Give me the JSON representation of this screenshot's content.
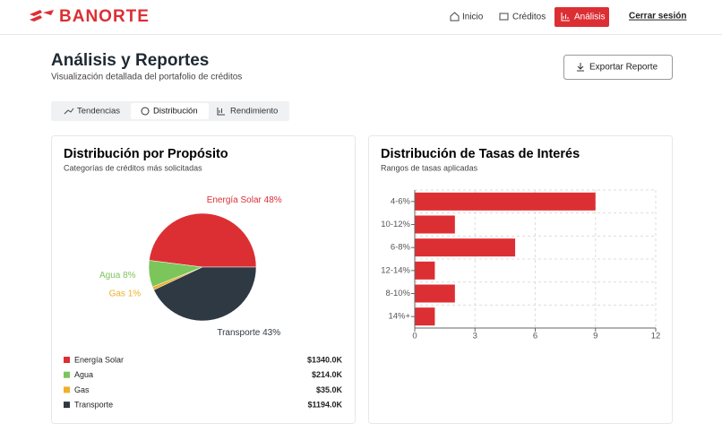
{
  "header": {
    "logo": "BANORTE",
    "nav": [
      "Inicio",
      "Créditos",
      "Análisis"
    ],
    "logout": "Cerrar sesión"
  },
  "page": {
    "title": "Análisis y Reportes",
    "subtitle": "Visualización detallada del portafolio de créditos",
    "export": "Exportar Reporte",
    "tabs": [
      "Tendencias",
      "Distribución",
      "Rendimiento"
    ]
  },
  "cards": [
    {
      "title": "Distribución por Propósito",
      "subtitle": "Categorías de créditos más solicitadas",
      "legend_amounts": [
        "$1340.0K",
        "$214.0K",
        "$35.0K",
        "$1194.0K"
      ],
      "chart_data": {
        "type": "pie",
        "categories": [
          "Energía Solar",
          "Agua",
          "Gas",
          "Transporte"
        ],
        "values": [
          48,
          8,
          1,
          43
        ],
        "value_labels": [
          "Energía Solar 48%",
          "Agua 8%",
          "Gas 1%",
          "Transporte 43%"
        ],
        "colors": [
          "#dc2f34",
          "#7cc55a",
          "#efb02c",
          "#2f3943"
        ]
      }
    },
    {
      "title": "Distribución de Tasas de Interés",
      "subtitle": "Rangos de tasas aplicadas",
      "chart_data": {
        "type": "bar",
        "orientation": "horizontal",
        "categories": [
          "4-6%",
          "10-12%",
          "6-8%",
          "12-14%",
          "8-10%",
          "14%+"
        ],
        "values": [
          9,
          2,
          5,
          1,
          2,
          1
        ],
        "color": "#dc2f34",
        "xlim": [
          0,
          12
        ],
        "xticks": [
          0,
          3,
          6,
          9,
          12
        ],
        "grid": true
      }
    }
  ]
}
